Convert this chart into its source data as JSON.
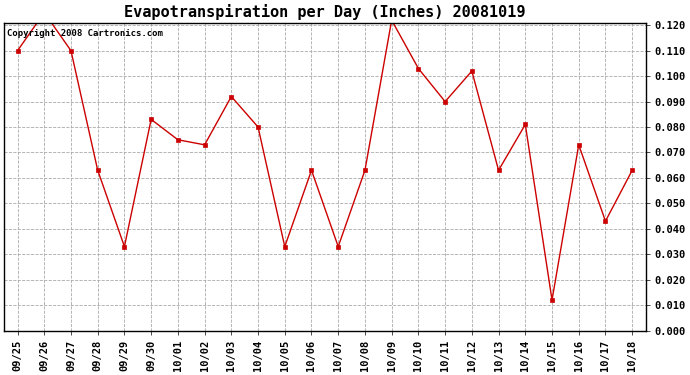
{
  "title": "Evapotranspiration per Day (Inches) 20081019",
  "copyright_text": "Copyright 2008 Cartronics.com",
  "x_labels": [
    "09/25",
    "09/26",
    "09/27",
    "09/28",
    "09/29",
    "09/30",
    "10/01",
    "10/02",
    "10/03",
    "10/04",
    "10/05",
    "10/06",
    "10/07",
    "10/08",
    "10/09",
    "10/10",
    "10/11",
    "10/12",
    "10/13",
    "10/14",
    "10/15",
    "10/16",
    "10/17",
    "10/18"
  ],
  "y_values": [
    0.11,
    0.125,
    0.11,
    0.063,
    0.033,
    0.083,
    0.075,
    0.073,
    0.092,
    0.08,
    0.033,
    0.063,
    0.033,
    0.063,
    0.122,
    0.103,
    0.09,
    0.102,
    0.063,
    0.081,
    0.012,
    0.073,
    0.043,
    0.063
  ],
  "line_color": "#cc0000",
  "marker": "s",
  "marker_size": 3,
  "ylim_min": 0.0,
  "ylim_max": 0.12,
  "ytick_values": [
    0.0,
    0.01,
    0.02,
    0.03,
    0.04,
    0.05,
    0.06,
    0.07,
    0.08,
    0.09,
    0.1,
    0.11,
    0.12
  ],
  "background_color": "#ffffff",
  "grid_color": "#aaaaaa",
  "title_fontsize": 11,
  "copyright_fontsize": 6.5,
  "tick_fontsize": 7.5,
  "tick_fontweight": "bold"
}
